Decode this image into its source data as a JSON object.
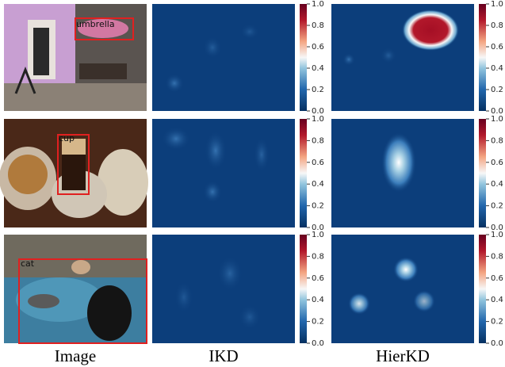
{
  "rows": [
    {
      "label": "umbrella"
    },
    {
      "label": "cup"
    },
    {
      "label": "cat"
    }
  ],
  "columns": [
    "Image",
    "IKD",
    "HierKD"
  ],
  "colorbar": {
    "ticks": [
      {
        "value": 0,
        "label": "0.0"
      },
      {
        "value": 0.2,
        "label": "0.2"
      },
      {
        "value": 0.4,
        "label": "0.4"
      },
      {
        "value": 0.6,
        "label": "0.6"
      },
      {
        "value": 0.8,
        "label": "0.8"
      },
      {
        "value": 1,
        "label": "1.0"
      }
    ]
  }
}
